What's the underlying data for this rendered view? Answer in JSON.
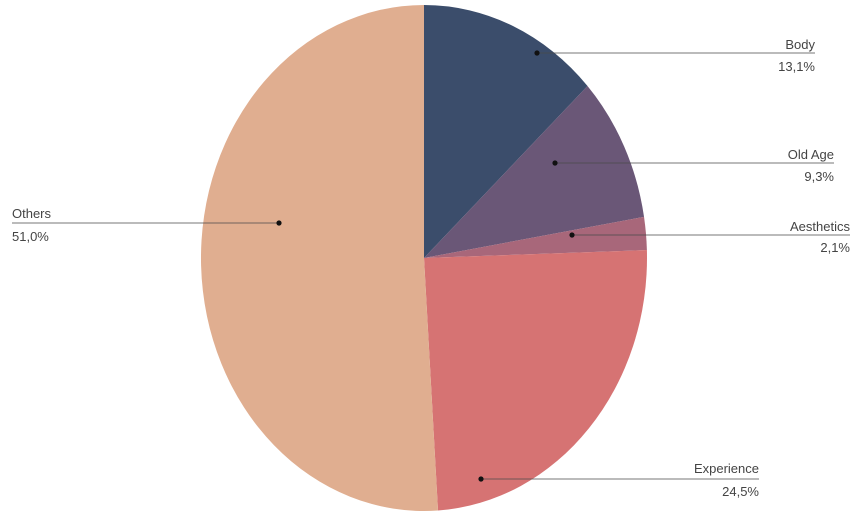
{
  "chart_data": {
    "type": "pie",
    "title": "",
    "start_angle_deg": 0,
    "direction": "clockwise",
    "legend": "none",
    "slices": [
      {
        "label": "Body",
        "value": 13.1,
        "display": "13,1%",
        "color": "#3b4d6b"
      },
      {
        "label": "Old Age",
        "value": 9.3,
        "display": "9,3%",
        "color": "#6a5777"
      },
      {
        "label": "Aesthetics",
        "value": 2.1,
        "display": "2,1%",
        "color": "#a8677a"
      },
      {
        "label": "Experience",
        "value": 24.5,
        "display": "24,5%",
        "color": "#d67373"
      },
      {
        "label": "Others",
        "value": 51.0,
        "display": "51,0%",
        "color": "#e0ae90"
      }
    ]
  }
}
